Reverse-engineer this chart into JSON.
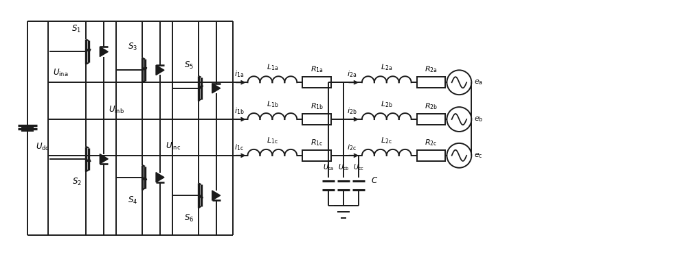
{
  "bg_color": "#ffffff",
  "lc": "#1a1a1a",
  "lw": 1.4,
  "fig_w": 10.0,
  "fig_h": 3.72,
  "dpi": 100,
  "fs": 8.5,
  "labels": {
    "S1": "$S_1$",
    "S2": "$S_2$",
    "S3": "$S_3$",
    "S4": "$S_4$",
    "S5": "$S_5$",
    "S6": "$S_6$",
    "Udc": "$U_{\\mathrm{dc}}$",
    "Uina": "$U_{\\mathrm{ina}}$",
    "Uinb": "$U_{\\mathrm{inb}}$",
    "Uinc": "$U_{\\mathrm{inc}}$",
    "i1a": "$i_{\\mathrm{1a}}$",
    "i1b": "$i_{\\mathrm{1b}}$",
    "i1c": "$i_{\\mathrm{1c}}$",
    "L1a": "$L_{\\mathrm{1a}}$",
    "L1b": "$L_{\\mathrm{1b}}$",
    "L1c": "$L_{\\mathrm{1c}}$",
    "R1a": "$R_{\\mathrm{1a}}$",
    "R1b": "$R_{\\mathrm{1b}}$",
    "R1c": "$R_{\\mathrm{1c}}$",
    "i2a": "$i_{\\mathrm{2a}}$",
    "i2b": "$i_{\\mathrm{2b}}$",
    "i2c": "$i_{\\mathrm{2c}}$",
    "L2a": "$L_{\\mathrm{2a}}$",
    "L2b": "$L_{\\mathrm{2b}}$",
    "L2c": "$L_{\\mathrm{2c}}$",
    "R2a": "$R_{\\mathrm{2a}}$",
    "R2b": "$R_{\\mathrm{2b}}$",
    "R2c": "$R_{\\mathrm{2c}}$",
    "ea": "$e_{\\mathrm{a}}$",
    "eb": "$e_{\\mathrm{b}}$",
    "ec": "$e_{\\mathrm{c}}$",
    "Uca": "$U_{\\mathrm{ca}}$",
    "Ucb": "$U_{\\mathrm{cb}}$",
    "Ucc": "$U_{\\mathrm{cc}}$",
    "C": "$C$"
  }
}
